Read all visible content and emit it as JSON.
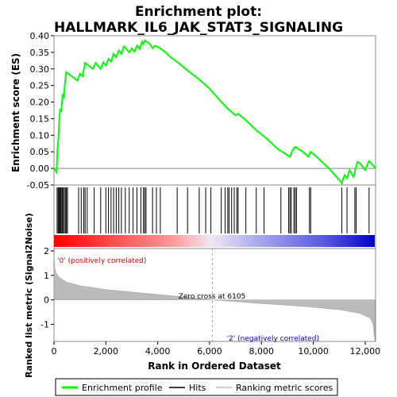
{
  "chart_data": {
    "type": "line",
    "title_line1": "Enrichment plot:",
    "title_line2": "HALLMARK_IL6_JAK_STAT3_SIGNALING",
    "top_panel": {
      "ylabel": "Enrichment score (ES)",
      "ylim": [
        -0.05,
        0.4
      ],
      "yticks": [
        "-0.05",
        "0.00",
        "0.05",
        "0.10",
        "0.15",
        "0.20",
        "0.25",
        "0.30",
        "0.35",
        "0.40"
      ],
      "ytick_values": [
        -0.05,
        0.0,
        0.05,
        0.1,
        0.15,
        0.2,
        0.25,
        0.3,
        0.35,
        0.4
      ],
      "series_name": "Enrichment profile",
      "color": "#00ff00",
      "es_points": [
        [
          0,
          0.0
        ],
        [
          100,
          -0.012
        ],
        [
          130,
          0.05
        ],
        [
          170,
          0.09
        ],
        [
          200,
          0.14
        ],
        [
          240,
          0.18
        ],
        [
          280,
          0.17
        ],
        [
          330,
          0.22
        ],
        [
          380,
          0.215
        ],
        [
          420,
          0.255
        ],
        [
          470,
          0.29
        ],
        [
          900,
          0.265
        ],
        [
          1000,
          0.285
        ],
        [
          1100,
          0.278
        ],
        [
          1200,
          0.318
        ],
        [
          1500,
          0.3
        ],
        [
          1600,
          0.318
        ],
        [
          1800,
          0.3
        ],
        [
          1900,
          0.32
        ],
        [
          2000,
          0.31
        ],
        [
          2100,
          0.33
        ],
        [
          2200,
          0.322
        ],
        [
          2300,
          0.345
        ],
        [
          2400,
          0.335
        ],
        [
          2500,
          0.356
        ],
        [
          2600,
          0.345
        ],
        [
          2700,
          0.368
        ],
        [
          2900,
          0.35
        ],
        [
          3000,
          0.362
        ],
        [
          3100,
          0.352
        ],
        [
          3200,
          0.37
        ],
        [
          3300,
          0.36
        ],
        [
          3400,
          0.382
        ],
        [
          3450,
          0.375
        ],
        [
          3500,
          0.386
        ],
        [
          3700,
          0.375
        ],
        [
          3800,
          0.362
        ],
        [
          3900,
          0.37
        ],
        [
          4100,
          0.362
        ],
        [
          4300,
          0.35
        ],
        [
          4500,
          0.335
        ],
        [
          4800,
          0.318
        ],
        [
          5200,
          0.292
        ],
        [
          5600,
          0.268
        ],
        [
          6000,
          0.24
        ],
        [
          6400,
          0.205
        ],
        [
          6700,
          0.18
        ],
        [
          7000,
          0.16
        ],
        [
          7100,
          0.165
        ],
        [
          7400,
          0.145
        ],
        [
          7800,
          0.115
        ],
        [
          8200,
          0.09
        ],
        [
          8600,
          0.06
        ],
        [
          8800,
          0.05
        ],
        [
          9000,
          0.04
        ],
        [
          9100,
          0.035
        ],
        [
          9200,
          0.055
        ],
        [
          9300,
          0.065
        ],
        [
          9600,
          0.05
        ],
        [
          9800,
          0.035
        ],
        [
          9900,
          0.05
        ],
        [
          10200,
          0.03
        ],
        [
          10600,
          0.0
        ],
        [
          11000,
          -0.035
        ],
        [
          11100,
          -0.045
        ],
        [
          11200,
          -0.02
        ],
        [
          11300,
          -0.03
        ],
        [
          11400,
          -0.005
        ],
        [
          11550,
          -0.025
        ],
        [
          11700,
          0.02
        ],
        [
          11800,
          0.015
        ],
        [
          12000,
          -0.005
        ],
        [
          12150,
          0.022
        ],
        [
          12400,
          0.0
        ]
      ],
      "hits": [
        120,
        160,
        190,
        220,
        250,
        280,
        320,
        360,
        400,
        450,
        480,
        520,
        950,
        1050,
        1150,
        1200,
        1280,
        1550,
        1800,
        2000,
        2100,
        2200,
        2300,
        2400,
        2500,
        2600,
        2750,
        2900,
        3050,
        3200,
        3350,
        3450,
        3500,
        3550,
        3800,
        3950,
        4100,
        4750,
        5150,
        5600,
        5850,
        6050,
        6450,
        6600,
        6700,
        6750,
        6850,
        6950,
        7050,
        7100,
        7400,
        7800,
        8100,
        8750,
        9050,
        9100,
        9150,
        9250,
        9300,
        9350,
        9850,
        9900,
        11100,
        11300,
        11600,
        11650,
        12150
      ]
    },
    "bottom_panel": {
      "ylabel": "Ranked list metric (Signal2Noise)",
      "xlabel": "Rank in Ordered Dataset",
      "ylim": [
        -1.7,
        2.1
      ],
      "yticks": [
        "-1",
        "0",
        "1",
        "2"
      ],
      "ytick_values": [
        -1,
        0,
        1,
        2
      ],
      "zero_cross_label": "Zero cross at 6105",
      "zero_cross": 6105,
      "pos_label": "'0' (positively correlated)",
      "neg_label": "'2' (negatively correlated)",
      "metric_points": [
        [
          0,
          1.9
        ],
        [
          30,
          1.3
        ],
        [
          80,
          1.1
        ],
        [
          200,
          0.92
        ],
        [
          500,
          0.72
        ],
        [
          1000,
          0.58
        ],
        [
          2000,
          0.42
        ],
        [
          3000,
          0.32
        ],
        [
          4000,
          0.22
        ],
        [
          5000,
          0.12
        ],
        [
          6105,
          0.0
        ],
        [
          7000,
          -0.07
        ],
        [
          8000,
          -0.15
        ],
        [
          9000,
          -0.22
        ],
        [
          10000,
          -0.3
        ],
        [
          11000,
          -0.4
        ],
        [
          11800,
          -0.55
        ],
        [
          12200,
          -0.75
        ],
        [
          12300,
          -1.0
        ],
        [
          12380,
          -1.7
        ]
      ]
    },
    "xlim": [
      0,
      12400
    ],
    "xticks": [
      "0",
      "2,000",
      "4,000",
      "6,000",
      "8,000",
      "10,000",
      "12,000"
    ],
    "xtick_values": [
      0,
      2000,
      4000,
      6000,
      8000,
      10000,
      12000
    ],
    "legend": [
      {
        "label": "Enrichment profile",
        "color": "#00ff00"
      },
      {
        "label": "Hits",
        "color": "#000000"
      },
      {
        "label": "Ranking metric scores",
        "color": "#bbbbbb"
      }
    ]
  }
}
